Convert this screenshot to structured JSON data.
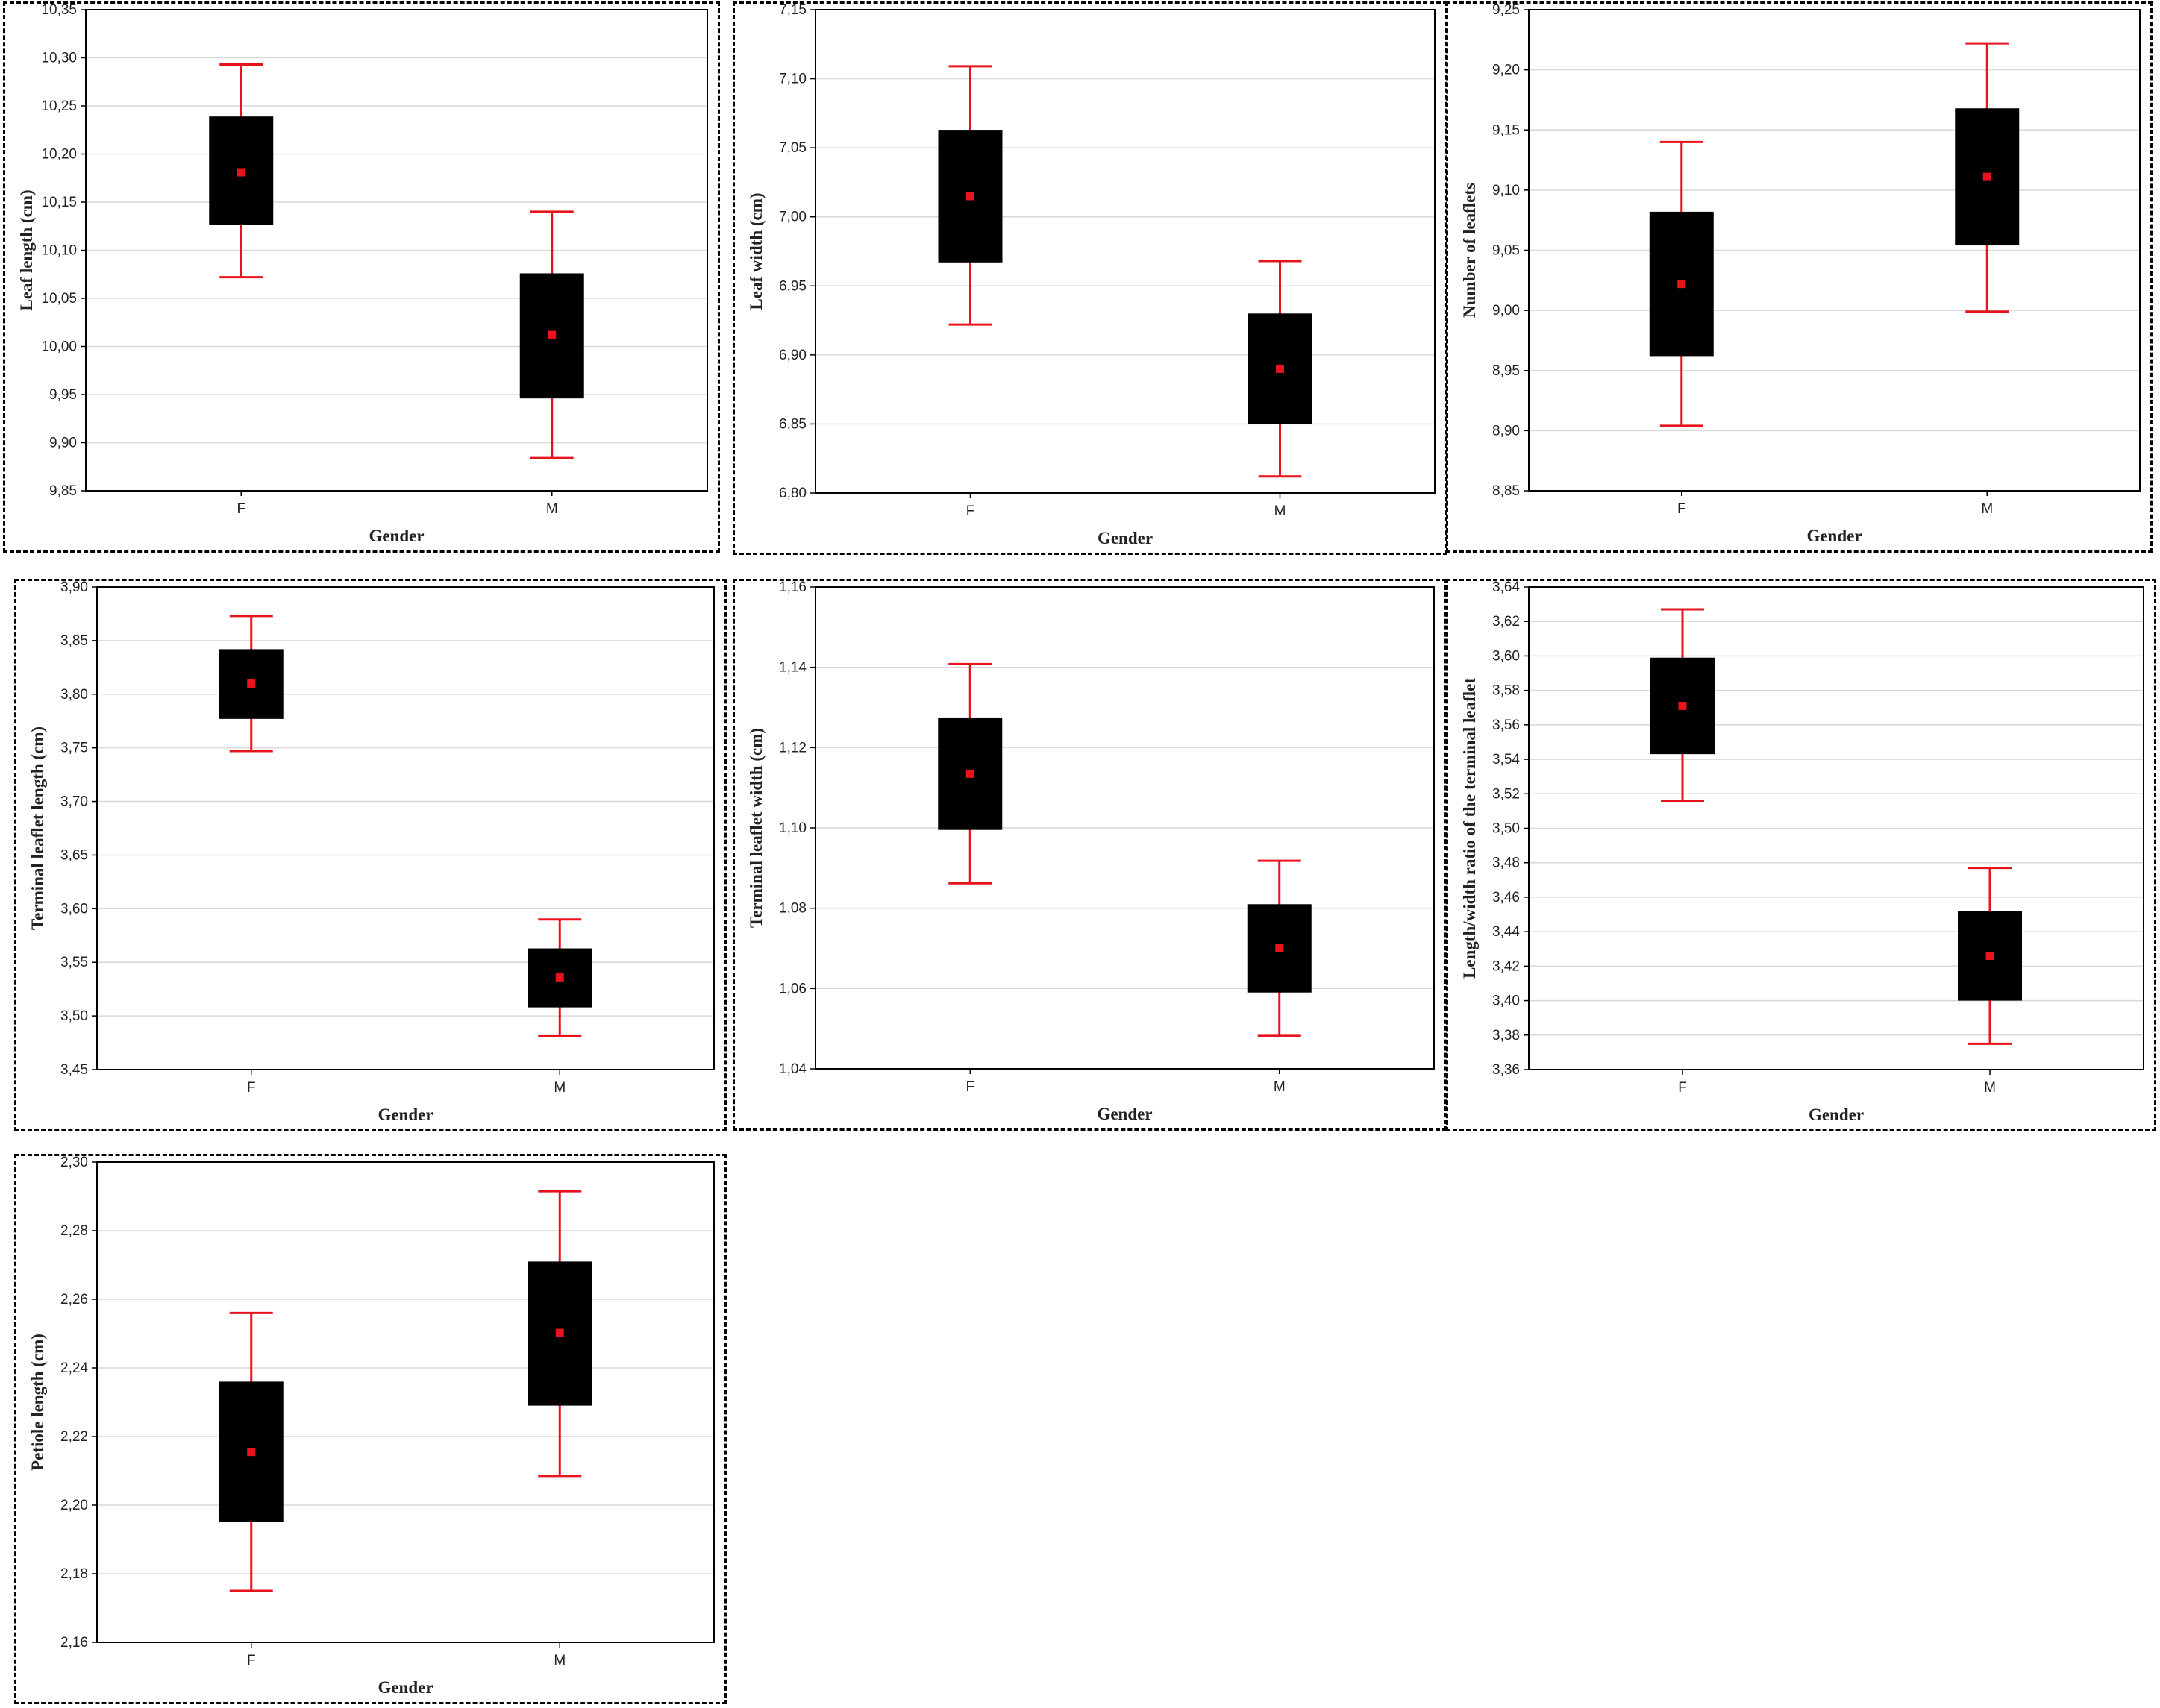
{
  "colors": {
    "box": "#000000",
    "whisker": "#e8141c",
    "mean": "#e8141c",
    "grid": "#d9d9d9",
    "frame": "#000000"
  },
  "chart_data": [
    {
      "type": "box",
      "title": "",
      "xlabel": "Gender",
      "ylabel": "Leaf length (cm)",
      "categories": [
        "F",
        "M"
      ],
      "ylim": [
        9.85,
        10.35
      ],
      "grid": true,
      "yticks": [
        "9,85",
        "9,90",
        "9,95",
        "10,00",
        "10,05",
        "10,10",
        "10,15",
        "10,20",
        "10,25",
        "10,30",
        "10,35"
      ],
      "boxes": [
        {
          "category": "F",
          "mean": 10.181,
          "box_low": 10.126,
          "box_high": 10.239,
          "whisker_low": 10.072,
          "whisker_high": 10.293
        },
        {
          "category": "M",
          "mean": 10.012,
          "box_low": 9.946,
          "box_high": 10.076,
          "whisker_low": 9.884,
          "whisker_high": 10.14
        }
      ]
    },
    {
      "type": "box",
      "title": "",
      "xlabel": "Gender",
      "ylabel": "Leaf width (cm)",
      "categories": [
        "F",
        "M"
      ],
      "ylim": [
        6.8,
        7.15
      ],
      "grid": true,
      "yticks": [
        "6,80",
        "6,85",
        "6,90",
        "6,95",
        "7,00",
        "7,05",
        "7,10",
        "7,15"
      ],
      "boxes": [
        {
          "category": "F",
          "mean": 7.015,
          "box_low": 6.967,
          "box_high": 7.063,
          "whisker_low": 6.922,
          "whisker_high": 7.109
        },
        {
          "category": "M",
          "mean": 6.89,
          "box_low": 6.85,
          "box_high": 6.93,
          "whisker_low": 6.812,
          "whisker_high": 6.968
        }
      ]
    },
    {
      "type": "box",
      "title": "",
      "xlabel": "Gender",
      "ylabel": "Number of leaflets",
      "categories": [
        "F",
        "M"
      ],
      "ylim": [
        8.85,
        9.25
      ],
      "grid": true,
      "yticks": [
        "8,85",
        "8,90",
        "8,95",
        "9,00",
        "9,05",
        "9,10",
        "9,15",
        "9,20",
        "9,25"
      ],
      "boxes": [
        {
          "category": "F",
          "mean": 9.022,
          "box_low": 8.962,
          "box_high": 9.082,
          "whisker_low": 8.904,
          "whisker_high": 9.14
        },
        {
          "category": "M",
          "mean": 9.111,
          "box_low": 9.054,
          "box_high": 9.168,
          "whisker_low": 8.999,
          "whisker_high": 9.222
        }
      ]
    },
    {
      "type": "box",
      "title": "",
      "xlabel": "Gender",
      "ylabel": "Terminal leaflet length (cm)",
      "categories": [
        "F",
        "M"
      ],
      "ylim": [
        3.45,
        3.9
      ],
      "grid": true,
      "yticks": [
        "3,45",
        "3,50",
        "3,55",
        "3,60",
        "3,65",
        "3,70",
        "3,75",
        "3,80",
        "3,85",
        "3,90"
      ],
      "boxes": [
        {
          "category": "F",
          "mean": 3.81,
          "box_low": 3.777,
          "box_high": 3.842,
          "whisker_low": 3.747,
          "whisker_high": 3.873
        },
        {
          "category": "M",
          "mean": 3.536,
          "box_low": 3.508,
          "box_high": 3.563,
          "whisker_low": 3.481,
          "whisker_high": 3.59
        }
      ]
    },
    {
      "type": "box",
      "title": "",
      "xlabel": "Gender",
      "ylabel": "Terminal leaflet width (cm)",
      "categories": [
        "F",
        "M"
      ],
      "ylim": [
        1.04,
        1.16
      ],
      "grid": true,
      "yticks": [
        "1,04",
        "1,06",
        "1,08",
        "1,10",
        "1,12",
        "1,14",
        "1,16"
      ],
      "boxes": [
        {
          "category": "F",
          "mean": 1.1135,
          "box_low": 1.0995,
          "box_high": 1.1275,
          "whisker_low": 1.0862,
          "whisker_high": 1.1408
        },
        {
          "category": "M",
          "mean": 1.07,
          "box_low": 1.059,
          "box_high": 1.081,
          "whisker_low": 1.0482,
          "whisker_high": 1.0918
        }
      ]
    },
    {
      "type": "box",
      "title": "",
      "xlabel": "Gender",
      "ylabel": "Length/width ratio of the terminal leaflet",
      "categories": [
        "F",
        "M"
      ],
      "ylim": [
        3.36,
        3.64
      ],
      "grid": true,
      "yticks": [
        "3,36",
        "3,38",
        "3,40",
        "3,42",
        "3,44",
        "3,46",
        "3,48",
        "3,50",
        "3,52",
        "3,54",
        "3,56",
        "3,58",
        "3,60",
        "3,62",
        "3,64"
      ],
      "boxes": [
        {
          "category": "F",
          "mean": 3.571,
          "box_low": 3.543,
          "box_high": 3.599,
          "whisker_low": 3.516,
          "whisker_high": 3.627
        },
        {
          "category": "M",
          "mean": 3.426,
          "box_low": 3.4,
          "box_high": 3.452,
          "whisker_low": 3.375,
          "whisker_high": 3.477
        }
      ]
    },
    {
      "type": "box",
      "title": "",
      "xlabel": "Gender",
      "ylabel": "Petiole length (cm)",
      "categories": [
        "F",
        "M"
      ],
      "ylim": [
        2.16,
        2.3
      ],
      "grid": true,
      "yticks": [
        "2,16",
        "2,18",
        "2,20",
        "2,22",
        "2,24",
        "2,26",
        "2,28",
        "2,30"
      ],
      "boxes": [
        {
          "category": "F",
          "mean": 2.2155,
          "box_low": 2.195,
          "box_high": 2.236,
          "whisker_low": 2.175,
          "whisker_high": 2.256
        },
        {
          "category": "M",
          "mean": 2.2502,
          "box_low": 2.229,
          "box_high": 2.271,
          "whisker_low": 2.2085,
          "whisker_high": 2.2915
        }
      ]
    }
  ]
}
